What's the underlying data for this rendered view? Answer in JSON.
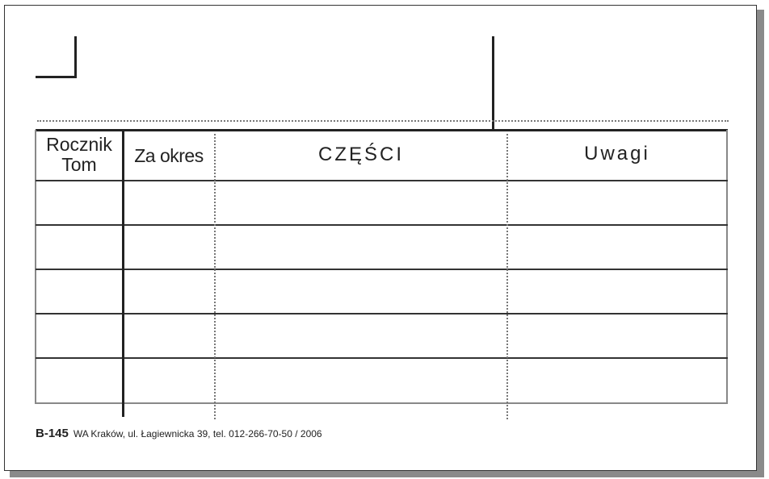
{
  "form": {
    "headers": {
      "rocznik": "Rocznik",
      "tom": "Tom",
      "za_okres": "Za okres",
      "czesci": "CZĘŚCI",
      "uwagi": "Uwagi"
    },
    "rows": 5
  },
  "footer": {
    "code": "B-145",
    "publisher": "WA Kraków, ul. Łagiewnicka 39, tel. 012-266-70-50 / 2006"
  }
}
